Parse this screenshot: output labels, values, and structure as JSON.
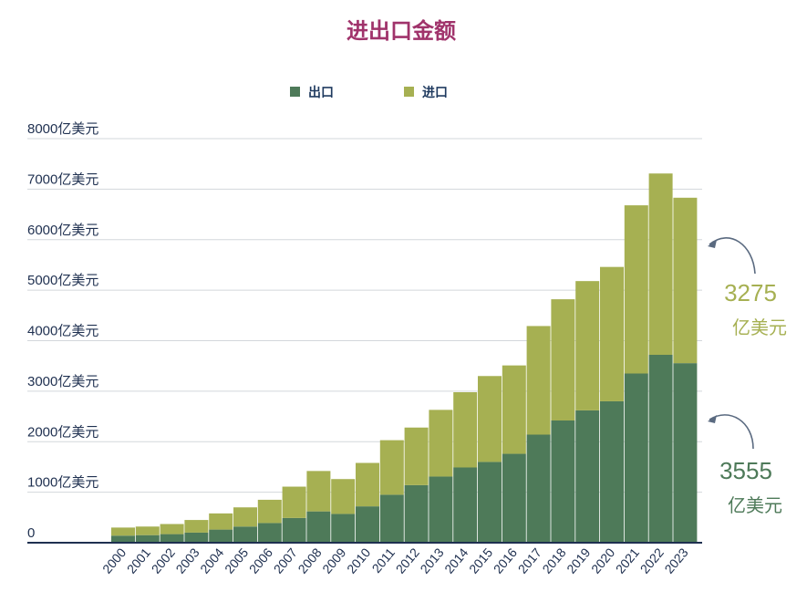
{
  "chart_data": {
    "type": "bar",
    "stacked": true,
    "title": "进出口金额",
    "categories": [
      "2000",
      "2001",
      "2002",
      "2003",
      "2004",
      "2005",
      "2006",
      "2007",
      "2008",
      "2009",
      "2010",
      "2011",
      "2012",
      "2013",
      "2014",
      "2015",
      "2016",
      "2017",
      "2018",
      "2019",
      "2020",
      "2021",
      "2022",
      "2023"
    ],
    "series": [
      {
        "name": "出口",
        "color": "#4e7a59",
        "values": [
          140,
          150,
          170,
          200,
          260,
          320,
          390,
          490,
          620,
          570,
          720,
          950,
          1140,
          1310,
          1490,
          1600,
          1760,
          2140,
          2420,
          2620,
          2800,
          3350,
          3720,
          3555
        ]
      },
      {
        "name": "进口",
        "color": "#a6b052",
        "values": [
          160,
          170,
          200,
          250,
          320,
          380,
          460,
          620,
          800,
          690,
          860,
          1080,
          1140,
          1320,
          1490,
          1700,
          1750,
          2150,
          2400,
          2560,
          2660,
          3330,
          3590,
          3275
        ]
      }
    ],
    "ylim": [
      0,
      8000
    ],
    "yticks": [
      0,
      1000,
      2000,
      3000,
      4000,
      5000,
      6000,
      7000,
      8000
    ],
    "ytick_labels": [
      "0",
      "1000亿美元",
      "2000亿美元",
      "3000亿美元",
      "4000亿美元",
      "5000亿美元",
      "6000亿美元",
      "7000亿美元",
      "8000亿美元"
    ],
    "legend_position": "top",
    "annotations": [
      {
        "series": "进口",
        "number": "3275",
        "unit": "亿美元"
      },
      {
        "series": "出口",
        "number": "3555",
        "unit": "亿美元"
      }
    ]
  }
}
